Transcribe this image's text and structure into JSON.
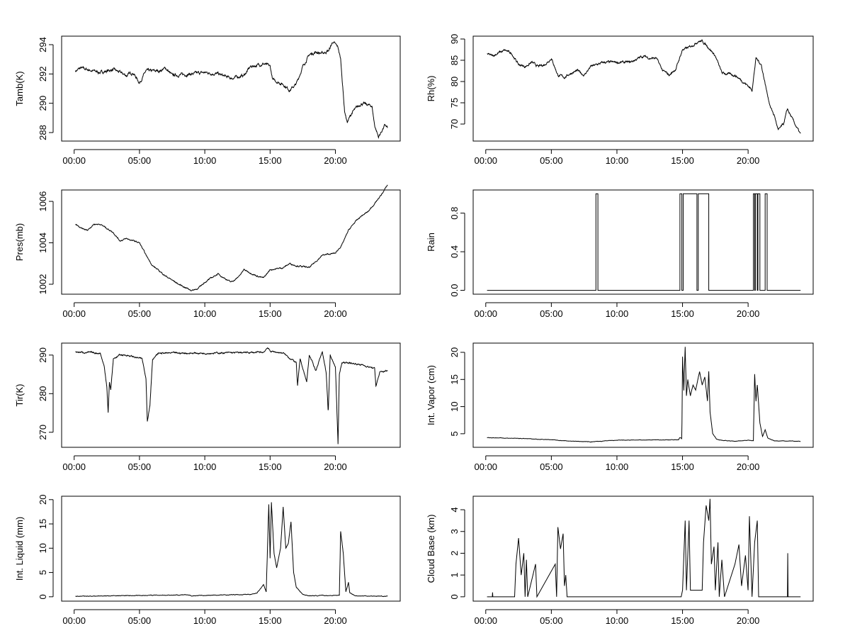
{
  "chart_data": [
    {
      "type": "line",
      "ylabel": "Tamb(K)",
      "ylim": [
        287.42,
        294.58
      ],
      "yticks": [
        "288",
        "290",
        "292",
        "294"
      ],
      "xticks": [
        "00:00",
        "05:00",
        "10:00",
        "15:00",
        "20:00"
      ],
      "points": [
        [
          0.1,
          292.2
        ],
        [
          0.5,
          292.4
        ],
        [
          1,
          292.3
        ],
        [
          2,
          292.1
        ],
        [
          3,
          292.3
        ],
        [
          4,
          291.9
        ],
        [
          4.5,
          292.1
        ],
        [
          5,
          291.4
        ],
        [
          5.5,
          292.2
        ],
        [
          6.5,
          292.2
        ],
        [
          7,
          292.4
        ],
        [
          7.5,
          291.9
        ],
        [
          9,
          292.0
        ],
        [
          10,
          292.1
        ],
        [
          11,
          292.0
        ],
        [
          12,
          291.7
        ],
        [
          13,
          291.9
        ],
        [
          13.5,
          292.5
        ],
        [
          14.5,
          292.7
        ],
        [
          15,
          292.5
        ],
        [
          15.2,
          291.6
        ],
        [
          16,
          291.3
        ],
        [
          16.5,
          290.9
        ],
        [
          17,
          291.3
        ],
        [
          17.5,
          292.5
        ],
        [
          18,
          293.3
        ],
        [
          18.5,
          293.5
        ],
        [
          19,
          293.4
        ],
        [
          19.5,
          293.6
        ],
        [
          19.8,
          294.2
        ],
        [
          20.2,
          293.8
        ],
        [
          20.4,
          293.0
        ],
        [
          20.7,
          289.5
        ],
        [
          20.9,
          288.7
        ],
        [
          21.3,
          289.4
        ],
        [
          22,
          290.0
        ],
        [
          22.8,
          289.8
        ],
        [
          23,
          288.5
        ],
        [
          23.3,
          287.7
        ],
        [
          23.6,
          288.2
        ],
        [
          23.8,
          288.5
        ],
        [
          24,
          288.3
        ]
      ]
    },
    {
      "type": "line",
      "ylabel": "Rh(%)",
      "ylim": [
        66.0,
        90.67
      ],
      "yticks": [
        "70",
        "75",
        "80",
        "85",
        "90"
      ],
      "xticks": [
        "00:00",
        "05:00",
        "10:00",
        "15:00",
        "20:00"
      ],
      "points": [
        [
          0.1,
          86.5
        ],
        [
          0.5,
          86
        ],
        [
          1,
          86.8
        ],
        [
          1.5,
          87.3
        ],
        [
          2,
          86.5
        ],
        [
          2.5,
          84
        ],
        [
          3,
          83.5
        ],
        [
          3.5,
          84.5
        ],
        [
          4,
          83.5
        ],
        [
          4.5,
          84
        ],
        [
          5,
          85.5
        ],
        [
          5.5,
          81.5
        ],
        [
          6,
          81
        ],
        [
          6.5,
          82
        ],
        [
          7,
          82.5
        ],
        [
          7.5,
          81.5
        ],
        [
          8,
          83.5
        ],
        [
          9,
          84.5
        ],
        [
          10,
          84.5
        ],
        [
          11,
          84.5
        ],
        [
          12,
          86
        ],
        [
          12.5,
          85.5
        ],
        [
          13,
          85.5
        ],
        [
          13.5,
          82.5
        ],
        [
          14,
          81.5
        ],
        [
          14.5,
          83
        ],
        [
          15,
          87.5
        ],
        [
          15.5,
          88
        ],
        [
          16.2,
          89.5
        ],
        [
          16.5,
          89.5
        ],
        [
          17,
          88
        ],
        [
          17.5,
          86
        ],
        [
          18,
          82
        ],
        [
          19,
          81.5
        ],
        [
          20,
          79
        ],
        [
          20.3,
          78
        ],
        [
          20.6,
          85.5
        ],
        [
          21,
          84
        ],
        [
          21.4,
          78
        ],
        [
          21.7,
          74
        ],
        [
          22,
          72
        ],
        [
          22.3,
          68.5
        ],
        [
          22.7,
          70
        ],
        [
          23,
          73.5
        ],
        [
          23.4,
          71
        ],
        [
          24,
          67.5
        ]
      ]
    },
    {
      "type": "line",
      "ylabel": "Pres(mb)",
      "ylim": [
        1001.52,
        1006.55
      ],
      "yticks": [
        "1002",
        "1004",
        "1006"
      ],
      "xticks": [
        "00:00",
        "05:00",
        "10:00",
        "15:00",
        "20:00"
      ],
      "points": [
        [
          0.1,
          1004.9
        ],
        [
          0.5,
          1004.7
        ],
        [
          1,
          1004.6
        ],
        [
          1.5,
          1004.9
        ],
        [
          2,
          1004.9
        ],
        [
          3,
          1004.5
        ],
        [
          3.5,
          1004.1
        ],
        [
          4,
          1004.2
        ],
        [
          5,
          1004.0
        ],
        [
          5.5,
          1003.4
        ],
        [
          6,
          1002.9
        ],
        [
          7,
          1002.4
        ],
        [
          8,
          1002.0
        ],
        [
          9,
          1001.7
        ],
        [
          9.5,
          1001.8
        ],
        [
          10,
          1002.1
        ],
        [
          11,
          1002.5
        ],
        [
          12,
          1002.1
        ],
        [
          12.5,
          1002.3
        ],
        [
          13,
          1002.7
        ],
        [
          14,
          1002.4
        ],
        [
          14.5,
          1002.3
        ],
        [
          15,
          1002.7
        ],
        [
          16,
          1002.8
        ],
        [
          16.5,
          1003.0
        ],
        [
          17,
          1002.9
        ],
        [
          18,
          1002.8
        ],
        [
          19,
          1003.4
        ],
        [
          20,
          1003.5
        ],
        [
          20.5,
          1003.9
        ],
        [
          21,
          1004.6
        ],
        [
          21.5,
          1005.0
        ],
        [
          22,
          1005.3
        ],
        [
          22.5,
          1005.5
        ],
        [
          23,
          1005.9
        ],
        [
          23.5,
          1006.3
        ],
        [
          24,
          1006.8
        ]
      ]
    },
    {
      "type": "line",
      "ylabel": "Rain",
      "ylim": [
        -0.04,
        1.04
      ],
      "yticks": [
        "0.0",
        "0.4",
        "0.8"
      ],
      "xticks": [
        "00:00",
        "05:00",
        "10:00",
        "15:00",
        "20:00"
      ],
      "points": [
        [
          0.1,
          0
        ],
        [
          8.4,
          0
        ],
        [
          8.4,
          1
        ],
        [
          8.55,
          1
        ],
        [
          8.55,
          0
        ],
        [
          14.8,
          0
        ],
        [
          14.8,
          1
        ],
        [
          14.95,
          1
        ],
        [
          14.95,
          0
        ],
        [
          15.05,
          0
        ],
        [
          15.05,
          1
        ],
        [
          16.1,
          1
        ],
        [
          16.1,
          0
        ],
        [
          16.2,
          0
        ],
        [
          16.2,
          1
        ],
        [
          17.0,
          1
        ],
        [
          17.0,
          0
        ],
        [
          20.4,
          0
        ],
        [
          20.4,
          1
        ],
        [
          20.5,
          1
        ],
        [
          20.5,
          0
        ],
        [
          20.55,
          0
        ],
        [
          20.55,
          1
        ],
        [
          20.7,
          1
        ],
        [
          20.7,
          0
        ],
        [
          20.75,
          0
        ],
        [
          20.75,
          1
        ],
        [
          20.9,
          1
        ],
        [
          20.9,
          0
        ],
        [
          21.3,
          0
        ],
        [
          21.3,
          1
        ],
        [
          21.45,
          1
        ],
        [
          21.45,
          0
        ],
        [
          24,
          0
        ]
      ]
    },
    {
      "type": "line",
      "ylabel": "Tir(K)",
      "ylim": [
        266.1,
        293.1
      ],
      "yticks": [
        "270",
        "280",
        "290"
      ],
      "xticks": [
        "00:00",
        "05:00",
        "10:00",
        "15:00",
        "20:00"
      ],
      "points": [
        [
          0.1,
          290.8
        ],
        [
          2,
          290.5
        ],
        [
          2.3,
          287
        ],
        [
          2.5,
          282
        ],
        [
          2.6,
          275
        ],
        [
          2.7,
          283
        ],
        [
          2.8,
          281
        ],
        [
          3,
          289
        ],
        [
          3.5,
          290
        ],
        [
          4,
          290
        ],
        [
          5.2,
          289
        ],
        [
          5.5,
          284
        ],
        [
          5.6,
          273
        ],
        [
          5.8,
          277
        ],
        [
          6,
          289
        ],
        [
          6.5,
          290.5
        ],
        [
          10,
          290.5
        ],
        [
          14.5,
          290.7
        ],
        [
          14.8,
          292
        ],
        [
          15,
          291
        ],
        [
          16,
          290.5
        ],
        [
          17,
          288
        ],
        [
          17.1,
          282
        ],
        [
          17.3,
          289
        ],
        [
          17.8,
          283
        ],
        [
          18,
          290
        ],
        [
          18.5,
          286
        ],
        [
          19,
          291
        ],
        [
          19.3,
          285
        ],
        [
          19.45,
          275
        ],
        [
          19.6,
          290
        ],
        [
          20,
          287
        ],
        [
          20.2,
          267
        ],
        [
          20.3,
          285
        ],
        [
          20.5,
          288
        ],
        [
          21,
          288
        ],
        [
          22,
          287.5
        ],
        [
          22.5,
          287
        ],
        [
          23,
          286.5
        ],
        [
          23.1,
          282
        ],
        [
          23.4,
          285.5
        ],
        [
          24,
          286
        ]
      ]
    },
    {
      "type": "line",
      "ylabel": "Int. Vapor (cm)",
      "ylim": [
        2.5,
        21.7
      ],
      "yticks": [
        "5",
        "10",
        "15",
        "20"
      ],
      "xticks": [
        "00:00",
        "05:00",
        "10:00",
        "15:00",
        "20:00"
      ],
      "points": [
        [
          0.1,
          4.3
        ],
        [
          3,
          4.1
        ],
        [
          5,
          3.9
        ],
        [
          6,
          3.7
        ],
        [
          8,
          3.5
        ],
        [
          10,
          3.8
        ],
        [
          14.7,
          3.9
        ],
        [
          14.8,
          4.3
        ],
        [
          14.95,
          4.1
        ],
        [
          15.0,
          19.2
        ],
        [
          15.1,
          13
        ],
        [
          15.2,
          21
        ],
        [
          15.3,
          12
        ],
        [
          15.4,
          15
        ],
        [
          15.6,
          12
        ],
        [
          15.8,
          14
        ],
        [
          16.0,
          13
        ],
        [
          16.3,
          16.5
        ],
        [
          16.5,
          14
        ],
        [
          16.7,
          15.5
        ],
        [
          16.9,
          11
        ],
        [
          17.0,
          16.5
        ],
        [
          17.1,
          9
        ],
        [
          17.3,
          5
        ],
        [
          17.6,
          4
        ],
        [
          18,
          3.8
        ],
        [
          19,
          3.6
        ],
        [
          20,
          3.8
        ],
        [
          20.4,
          3.7
        ],
        [
          20.5,
          16
        ],
        [
          20.6,
          11
        ],
        [
          20.7,
          14
        ],
        [
          20.9,
          7
        ],
        [
          21.1,
          4.5
        ],
        [
          21.3,
          5.7
        ],
        [
          21.5,
          4.2
        ],
        [
          22,
          3.7
        ],
        [
          24,
          3.6
        ]
      ]
    },
    {
      "type": "line",
      "ylabel": "Int. Liquid (mm)",
      "ylim": [
        -0.9,
        20.7
      ],
      "yticks": [
        "0",
        "5",
        "10",
        "15",
        "20"
      ],
      "xticks": [
        "00:00",
        "05:00",
        "10:00",
        "15:00",
        "20:00"
      ],
      "points": [
        [
          0.1,
          0.1
        ],
        [
          8.5,
          0.4
        ],
        [
          9,
          0.2
        ],
        [
          13.5,
          0.5
        ],
        [
          14,
          0.8
        ],
        [
          14.5,
          2.5
        ],
        [
          14.7,
          1
        ],
        [
          14.9,
          19
        ],
        [
          15.0,
          8
        ],
        [
          15.1,
          19.5
        ],
        [
          15.3,
          9
        ],
        [
          15.5,
          6
        ],
        [
          15.8,
          10
        ],
        [
          16.0,
          18.5
        ],
        [
          16.2,
          10
        ],
        [
          16.4,
          11
        ],
        [
          16.6,
          15.5
        ],
        [
          16.8,
          5
        ],
        [
          17,
          2
        ],
        [
          17.5,
          0.5
        ],
        [
          18,
          0.2
        ],
        [
          20.3,
          0.3
        ],
        [
          20.4,
          13.5
        ],
        [
          20.6,
          9
        ],
        [
          20.8,
          1
        ],
        [
          21,
          3
        ],
        [
          21.1,
          0.8
        ],
        [
          21.5,
          0.2
        ],
        [
          24,
          0.1
        ]
      ]
    },
    {
      "type": "line",
      "ylabel": "Cloud Base (km)",
      "ylim": [
        -0.2,
        4.62
      ],
      "yticks": [
        "0",
        "1",
        "2",
        "3",
        "4"
      ],
      "xticks": [
        "00:00",
        "05:00",
        "10:00",
        "15:00",
        "20:00"
      ],
      "points": [
        [
          0.1,
          0
        ],
        [
          0.5,
          0
        ],
        [
          0.52,
          0.2
        ],
        [
          0.54,
          0
        ],
        [
          2.2,
          0
        ],
        [
          2.3,
          1.5
        ],
        [
          2.5,
          2.7
        ],
        [
          2.7,
          1
        ],
        [
          2.9,
          2
        ],
        [
          3.0,
          0
        ],
        [
          3.1,
          1.7
        ],
        [
          3.2,
          0
        ],
        [
          3.8,
          1.5
        ],
        [
          3.9,
          0
        ],
        [
          5.3,
          1.5
        ],
        [
          5.4,
          0
        ],
        [
          5.5,
          3.2
        ],
        [
          5.7,
          2.2
        ],
        [
          5.9,
          2.9
        ],
        [
          6,
          0.5
        ],
        [
          6.1,
          1
        ],
        [
          6.2,
          0
        ],
        [
          14.9,
          0
        ],
        [
          15,
          0.3
        ],
        [
          15.2,
          3.5
        ],
        [
          15.3,
          0.3
        ],
        [
          15.5,
          3.5
        ],
        [
          15.6,
          0.3
        ],
        [
          16.5,
          0.3
        ],
        [
          16.6,
          2.5
        ],
        [
          16.8,
          4.2
        ],
        [
          17,
          3.5
        ],
        [
          17.1,
          4.5
        ],
        [
          17.2,
          1.5
        ],
        [
          17.4,
          2.3
        ],
        [
          17.5,
          0.3
        ],
        [
          17.7,
          2.5
        ],
        [
          17.8,
          0
        ],
        [
          18,
          1.7
        ],
        [
          18.2,
          0
        ],
        [
          19,
          1.5
        ],
        [
          19.3,
          2.4
        ],
        [
          19.5,
          0.5
        ],
        [
          19.8,
          1.9
        ],
        [
          20,
          0.3
        ],
        [
          20.1,
          3.7
        ],
        [
          20.3,
          0
        ],
        [
          20.5,
          2.5
        ],
        [
          20.7,
          3.5
        ],
        [
          20.8,
          0
        ],
        [
          23,
          0
        ],
        [
          23.02,
          2
        ],
        [
          23.05,
          0
        ],
        [
          24,
          0
        ]
      ]
    }
  ]
}
